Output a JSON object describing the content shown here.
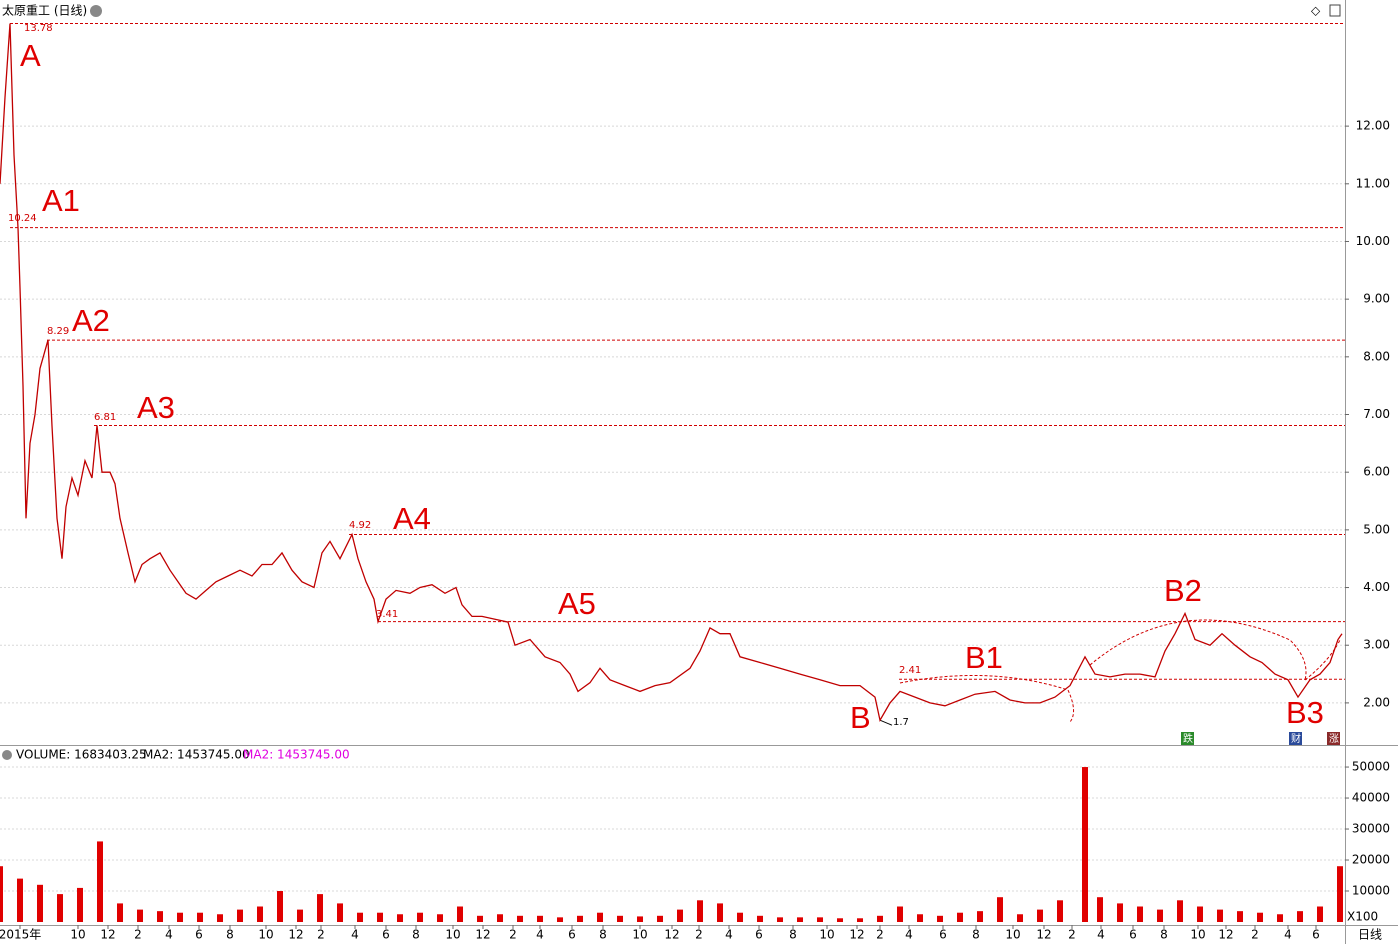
{
  "chart_data": {
    "type": "line",
    "title": "太原重工 (日线)",
    "price": {
      "x": [
        0,
        5,
        10,
        14,
        18,
        20,
        23,
        26,
        30,
        35,
        40,
        48,
        52,
        57,
        62,
        66,
        72,
        78,
        85,
        92,
        97,
        102,
        110,
        115,
        120,
        128,
        135,
        142,
        150,
        160,
        170,
        178,
        186,
        196,
        206,
        216,
        228,
        240,
        252,
        262,
        272,
        282,
        292,
        302,
        314,
        322,
        330,
        340,
        352,
        358,
        366,
        374,
        378,
        386,
        396,
        410,
        420,
        432,
        445,
        456,
        462,
        472,
        482,
        495,
        508,
        515,
        530,
        545,
        560,
        570,
        578,
        590,
        600,
        610,
        625,
        640,
        655,
        670,
        690,
        700,
        710,
        720,
        730,
        740,
        760,
        780,
        800,
        820,
        840,
        860,
        875,
        880,
        890,
        900,
        915,
        930,
        945,
        960,
        975,
        995,
        1010,
        1025,
        1040,
        1055,
        1070,
        1085,
        1095,
        1110,
        1125,
        1140,
        1155,
        1165,
        1175,
        1185,
        1195,
        1210,
        1222,
        1235,
        1250,
        1262,
        1275,
        1288,
        1298,
        1310,
        1320,
        1330,
        1338,
        1342
      ],
      "values": [
        11.0,
        12.5,
        13.78,
        11.5,
        10.24,
        9.2,
        7.5,
        5.2,
        6.5,
        7.0,
        7.8,
        8.29,
        6.8,
        5.2,
        4.5,
        5.4,
        5.9,
        5.6,
        6.2,
        5.9,
        6.81,
        6.0,
        6.0,
        5.8,
        5.2,
        4.6,
        4.1,
        4.4,
        4.5,
        4.6,
        4.3,
        4.1,
        3.9,
        3.8,
        3.95,
        4.1,
        4.2,
        4.3,
        4.2,
        4.4,
        4.4,
        4.6,
        4.3,
        4.1,
        4.0,
        4.6,
        4.8,
        4.5,
        4.92,
        4.5,
        4.1,
        3.8,
        3.41,
        3.8,
        3.95,
        3.9,
        4.0,
        4.05,
        3.9,
        4.0,
        3.7,
        3.5,
        3.5,
        3.45,
        3.4,
        3.0,
        3.1,
        2.8,
        2.7,
        2.5,
        2.2,
        2.35,
        2.6,
        2.4,
        2.3,
        2.2,
        2.3,
        2.35,
        2.6,
        2.9,
        3.3,
        3.2,
        3.2,
        2.8,
        2.7,
        2.6,
        2.5,
        2.4,
        2.3,
        2.3,
        2.1,
        1.7,
        2.0,
        2.2,
        2.1,
        2.0,
        1.95,
        2.05,
        2.15,
        2.2,
        2.05,
        2.0,
        2.0,
        2.1,
        2.3,
        2.8,
        2.5,
        2.45,
        2.5,
        2.5,
        2.45,
        2.9,
        3.2,
        3.55,
        3.1,
        3.0,
        3.2,
        3.0,
        2.8,
        2.7,
        2.5,
        2.4,
        2.1,
        2.4,
        2.5,
        2.7,
        3.1,
        3.2
      ],
      "color": "#c00000",
      "ylim": [
        1.27,
        13.84
      ],
      "yticks": [
        {
          "value": 2,
          "label": "2.00"
        },
        {
          "value": 3,
          "label": "3.00"
        },
        {
          "value": 4,
          "label": "4.00"
        },
        {
          "value": 5,
          "label": "5.00"
        },
        {
          "value": 6,
          "label": "6.00"
        },
        {
          "value": 7,
          "label": "7.00"
        },
        {
          "value": 8,
          "label": "8.00"
        },
        {
          "value": 9,
          "label": "9.00"
        },
        {
          "value": 10,
          "label": "10.00"
        },
        {
          "value": 11,
          "label": "11.00"
        },
        {
          "value": 12,
          "label": "12.00"
        }
      ],
      "grid": true
    },
    "levels": [
      {
        "name": "A",
        "value": 13.78
      },
      {
        "name": "A1",
        "value": 10.24
      },
      {
        "name": "A2",
        "value": 8.29
      },
      {
        "name": "A3",
        "value": 6.81
      },
      {
        "name": "A4",
        "value": 4.92
      },
      {
        "name": "A5",
        "value": 3.41
      },
      {
        "name": "B1",
        "value": 2.41
      }
    ],
    "annotations": [
      {
        "name": "B",
        "value": 1.7
      },
      {
        "name": "B2"
      },
      {
        "name": "B3"
      }
    ],
    "badges": [
      "跌",
      "财",
      "涨"
    ],
    "volume": {
      "label": "VOLUME: 1683403.25",
      "ma_label": "MA2: 1453745.00",
      "ma_label2": "MA2: 1453745.00",
      "unit": "X100",
      "x": [
        0,
        20,
        40,
        60,
        80,
        100,
        120,
        140,
        160,
        180,
        200,
        220,
        240,
        260,
        280,
        300,
        320,
        340,
        360,
        380,
        400,
        420,
        440,
        460,
        480,
        500,
        520,
        540,
        560,
        580,
        600,
        620,
        640,
        660,
        680,
        700,
        720,
        740,
        760,
        780,
        800,
        820,
        840,
        860,
        880,
        900,
        920,
        940,
        960,
        980,
        1000,
        1020,
        1040,
        1060,
        1085,
        1100,
        1120,
        1140,
        1160,
        1180,
        1200,
        1220,
        1240,
        1260,
        1280,
        1300,
        1320,
        1340
      ],
      "values": [
        18000,
        14000,
        12000,
        9000,
        11000,
        26000,
        6000,
        4000,
        3500,
        3000,
        3000,
        2500,
        4000,
        5000,
        10000,
        4000,
        9000,
        6000,
        3000,
        3000,
        2500,
        3000,
        2500,
        5000,
        2000,
        2500,
        2000,
        2000,
        1500,
        2000,
        3000,
        2000,
        1800,
        2000,
        4000,
        7000,
        6000,
        3000,
        2000,
        1500,
        1500,
        1500,
        1200,
        1200,
        2000,
        5000,
        2500,
        2000,
        3000,
        3500,
        8000,
        2500,
        4000,
        7000,
        50000,
        8000,
        6000,
        5000,
        4000,
        7000,
        5000,
        4000,
        3500,
        3000,
        2500,
        3500,
        5000,
        18000
      ],
      "color": "#e00000",
      "ylim": [
        0,
        55500
      ],
      "yticks": [
        10000,
        20000,
        30000,
        40000,
        50000
      ]
    },
    "xlim": [
      0,
      1345
    ],
    "xticks": [
      {
        "value": 20,
        "label": "2015年"
      },
      {
        "value": 78,
        "label": "10"
      },
      {
        "value": 108,
        "label": "12"
      },
      {
        "value": 138,
        "label": "2"
      },
      {
        "value": 169,
        "label": "4"
      },
      {
        "value": 199,
        "label": "6"
      },
      {
        "value": 230,
        "label": "8"
      },
      {
        "value": 266,
        "label": "10"
      },
      {
        "value": 296,
        "label": "12"
      },
      {
        "value": 321,
        "label": "2"
      },
      {
        "value": 355,
        "label": "4"
      },
      {
        "value": 386,
        "label": "6"
      },
      {
        "value": 416,
        "label": "8"
      },
      {
        "value": 453,
        "label": "10"
      },
      {
        "value": 483,
        "label": "12"
      },
      {
        "value": 513,
        "label": "2"
      },
      {
        "value": 540,
        "label": "4"
      },
      {
        "value": 572,
        "label": "6"
      },
      {
        "value": 603,
        "label": "8"
      },
      {
        "value": 640,
        "label": "10"
      },
      {
        "value": 672,
        "label": "12"
      },
      {
        "value": 699,
        "label": "2"
      },
      {
        "value": 729,
        "label": "4"
      },
      {
        "value": 759,
        "label": "6"
      },
      {
        "value": 793,
        "label": "8"
      },
      {
        "value": 827,
        "label": "10"
      },
      {
        "value": 857,
        "label": "12"
      },
      {
        "value": 880,
        "label": "2"
      },
      {
        "value": 909,
        "label": "4"
      },
      {
        "value": 943,
        "label": "6"
      },
      {
        "value": 976,
        "label": "8"
      },
      {
        "value": 1013,
        "label": "10"
      },
      {
        "value": 1044,
        "label": "12"
      },
      {
        "value": 1072,
        "label": "2"
      },
      {
        "value": 1101,
        "label": "4"
      },
      {
        "value": 1133,
        "label": "6"
      },
      {
        "value": 1164,
        "label": "8"
      },
      {
        "value": 1198,
        "label": "10"
      },
      {
        "value": 1226,
        "label": "12"
      },
      {
        "value": 1255,
        "label": "2"
      },
      {
        "value": 1288,
        "label": "4"
      },
      {
        "value": 1316,
        "label": "6"
      }
    ],
    "period": "日线"
  }
}
